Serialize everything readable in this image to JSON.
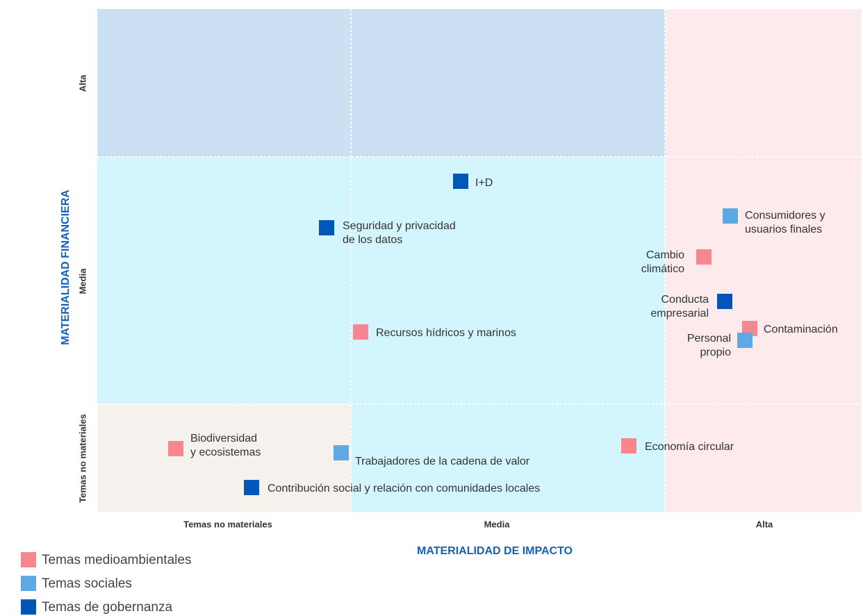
{
  "y_axis": {
    "title": "MATERIALIDAD FINANCIERA",
    "labels": [
      "Alta",
      "Media",
      "Temas no materiales"
    ]
  },
  "x_axis": {
    "title": "MATERIALIDAD DE IMPACTO",
    "labels": [
      "Temas no materiales",
      "Media",
      "Alta"
    ]
  },
  "legend": [
    {
      "label": "Temas medioambientales",
      "color": "#f7878f",
      "topics": [
        {
          "lines": [
            "Cambio",
            "climático"
          ]
        },
        {
          "lines": [
            "Contaminación"
          ]
        },
        {
          "lines": [
            "Recursos hídricos y marinos"
          ]
        },
        {
          "lines": [
            "Biodiversidad",
            "y ecosistemas"
          ]
        },
        {
          "lines": [
            "Economía circular"
          ]
        }
      ]
    },
    {
      "label": "Temas sociales",
      "color": "#5ea8e3",
      "topics": [
        {
          "lines": [
            "Consumidores y",
            "usuarios finales"
          ]
        },
        {
          "lines": [
            "Personal",
            "propio"
          ]
        },
        {
          "lines": [
            "Trabajadores de la cadena de valor"
          ]
        }
      ]
    },
    {
      "label": "Temas de gobernanza",
      "color": "#0057b8",
      "topics": [
        {
          "lines": [
            "I+D"
          ]
        },
        {
          "lines": [
            "Seguridad y privacidad",
            "de los datos"
          ]
        },
        {
          "lines": [
            "Conducta",
            "empresarial"
          ]
        },
        {
          "lines": [
            "Contribución social y relación con comunidades locales"
          ]
        }
      ]
    }
  ]
}
